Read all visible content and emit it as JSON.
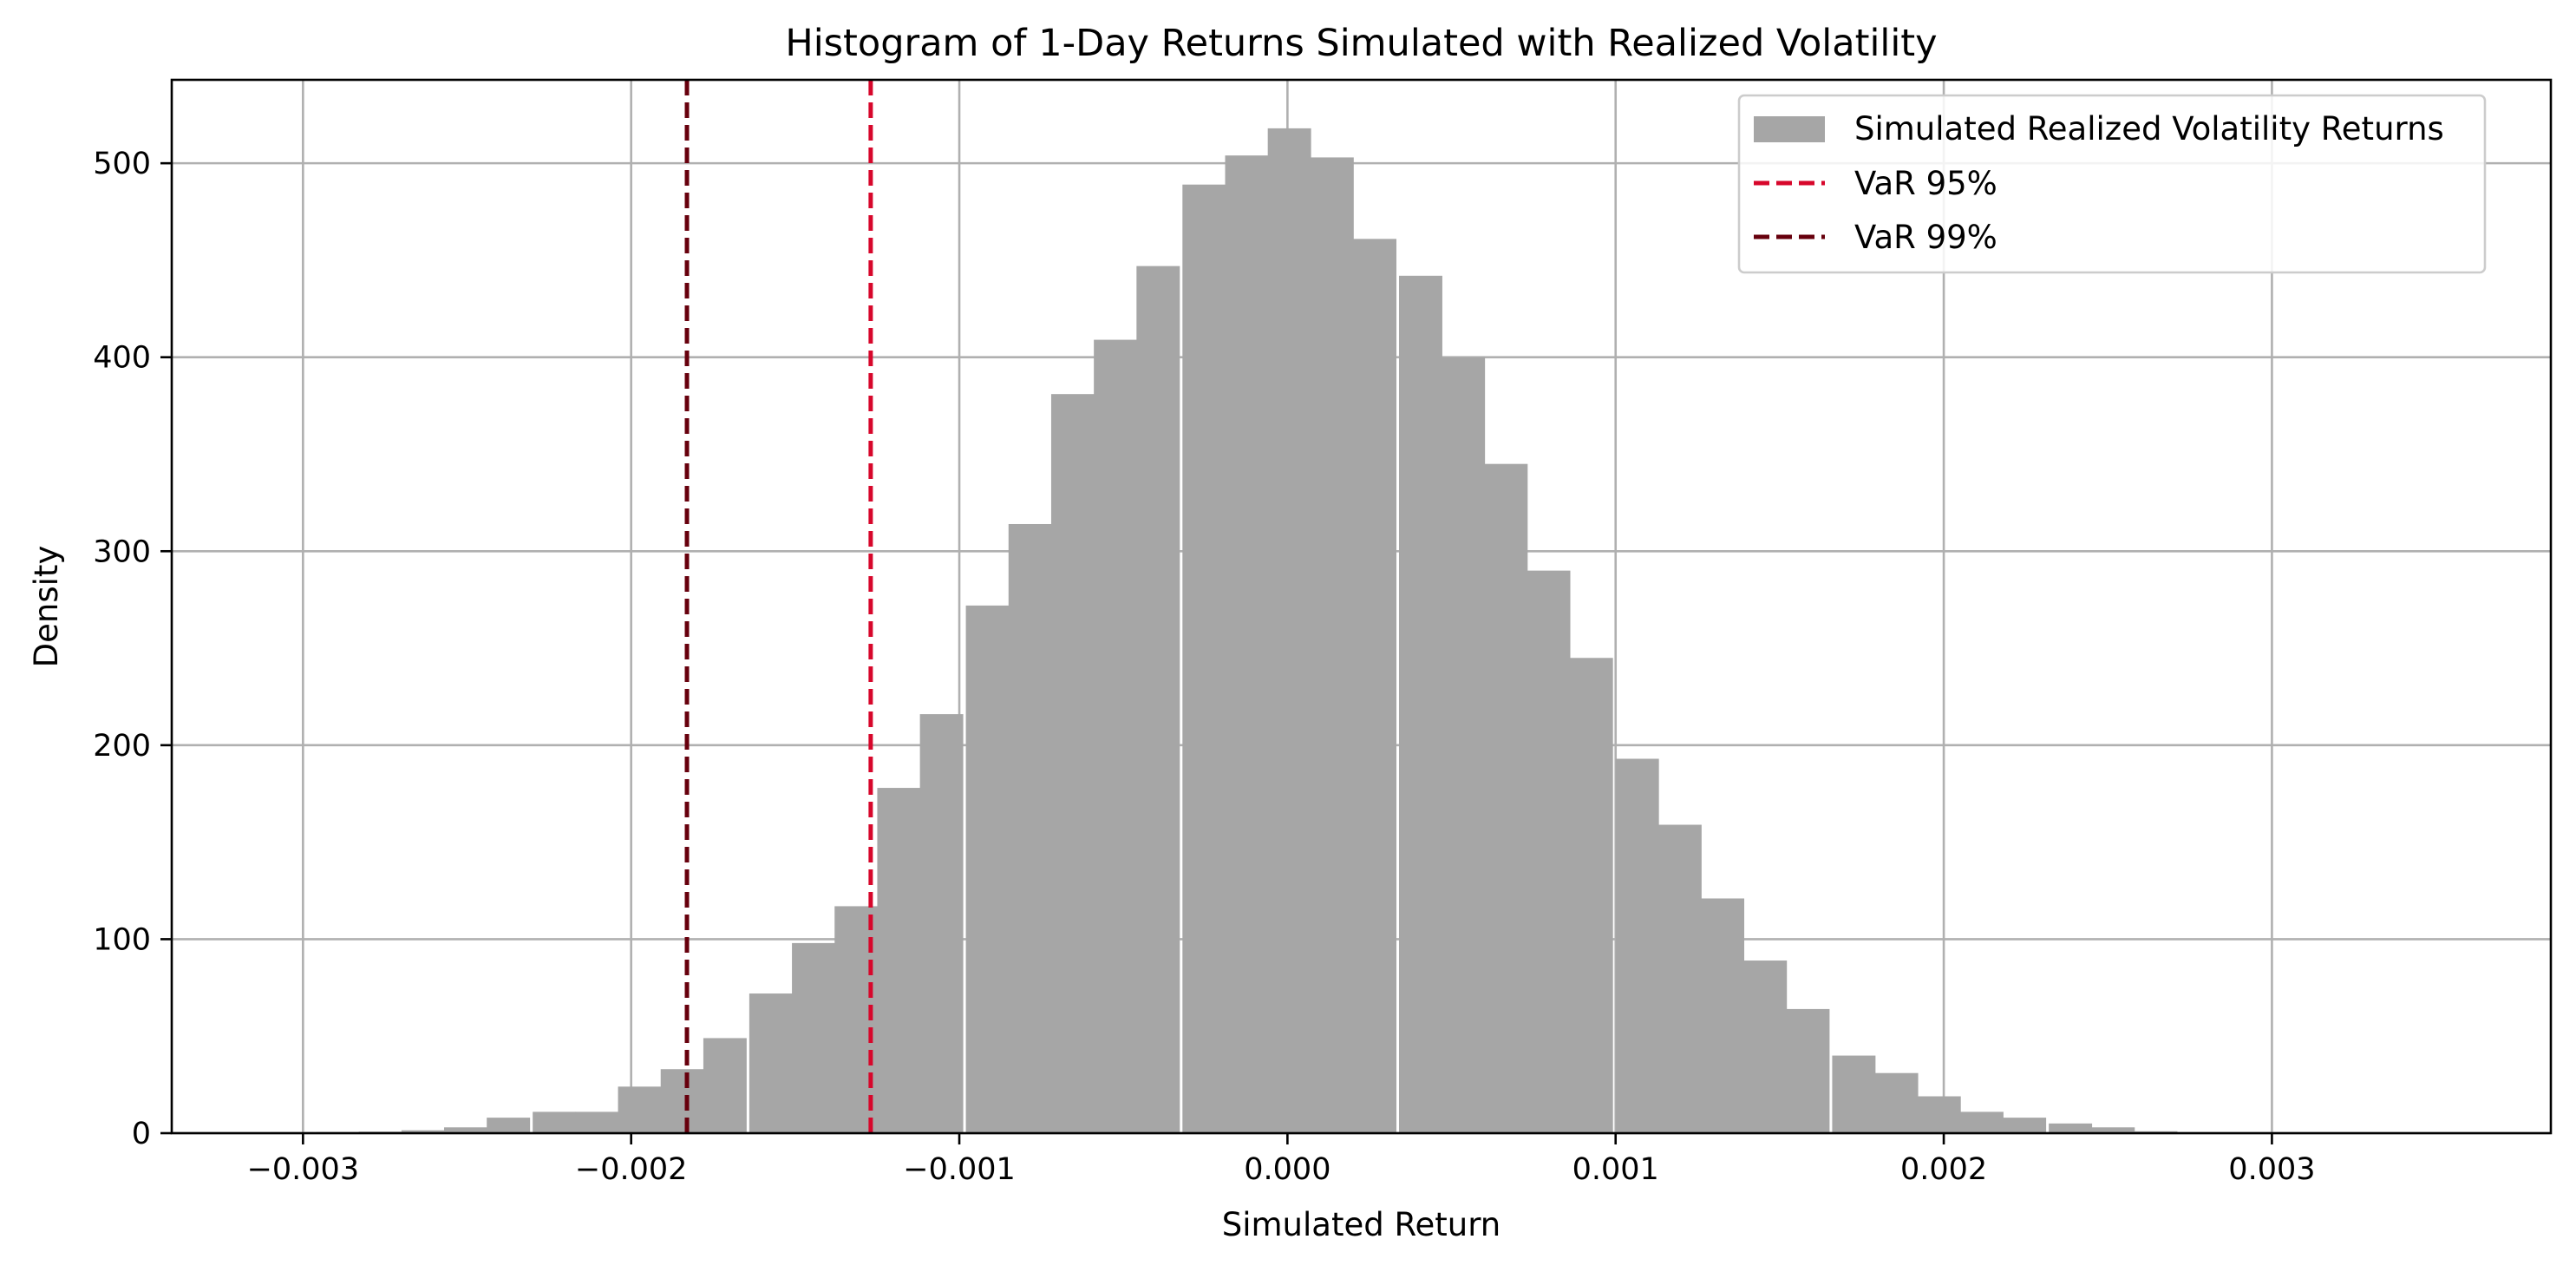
{
  "chart_data": {
    "type": "bar",
    "title": "Histogram of 1-Day Returns Simulated with Realized Volatility",
    "xlabel": "Simulated Return",
    "ylabel": "Density",
    "xlim": [
      -0.0034,
      0.00385
    ],
    "ylim": [
      0,
      543
    ],
    "xticks": [
      -0.003,
      -0.002,
      -0.001,
      0.0,
      0.001,
      0.002,
      0.003
    ],
    "xtick_labels": [
      "−0.003",
      "−0.002",
      "−0.001",
      "0.000",
      "0.001",
      "0.002",
      "0.003"
    ],
    "yticks": [
      0,
      100,
      200,
      300,
      400,
      500
    ],
    "ytick_labels": [
      "0",
      "100",
      "200",
      "300",
      "400",
      "500"
    ],
    "grid": true,
    "legend_position": "upper-right",
    "bin_width": 0.000132,
    "series": [
      {
        "name": "Simulated Realized Volatility Returns",
        "kind": "histogram",
        "color": "#a6a6a6",
        "bins": [
          {
            "x0": -0.00323,
            "value": 0.3
          },
          {
            "x0": -0.0031,
            "value": 0.5
          },
          {
            "x0": -0.00296,
            "value": 0.6
          },
          {
            "x0": -0.00283,
            "value": 0.8
          },
          {
            "x0": -0.0027,
            "value": 1.5
          },
          {
            "x0": -0.00257,
            "value": 3
          },
          {
            "x0": -0.00244,
            "value": 8
          },
          {
            "x0": -0.0023,
            "value": 11
          },
          {
            "x0": -0.00217,
            "value": 11
          },
          {
            "x0": -0.00204,
            "value": 24
          },
          {
            "x0": -0.00191,
            "value": 33
          },
          {
            "x0": -0.00178,
            "value": 49
          },
          {
            "x0": -0.00164,
            "value": 72
          },
          {
            "x0": -0.00151,
            "value": 98
          },
          {
            "x0": -0.00138,
            "value": 117
          },
          {
            "x0": -0.00125,
            "value": 178
          },
          {
            "x0": -0.00112,
            "value": 216
          },
          {
            "x0": -0.00098,
            "value": 272
          },
          {
            "x0": -0.00085,
            "value": 314
          },
          {
            "x0": -0.00072,
            "value": 381
          },
          {
            "x0": -0.00059,
            "value": 409
          },
          {
            "x0": -0.00046,
            "value": 447
          },
          {
            "x0": -0.00032,
            "value": 489
          },
          {
            "x0": -0.00019,
            "value": 504
          },
          {
            "x0": -6e-05,
            "value": 518
          },
          {
            "x0": 7e-05,
            "value": 503
          },
          {
            "x0": 0.0002,
            "value": 461
          },
          {
            "x0": 0.00034,
            "value": 442
          },
          {
            "x0": 0.00047,
            "value": 400
          },
          {
            "x0": 0.0006,
            "value": 345
          },
          {
            "x0": 0.00073,
            "value": 290
          },
          {
            "x0": 0.00086,
            "value": 245
          },
          {
            "x0": 0.001,
            "value": 193
          },
          {
            "x0": 0.00113,
            "value": 159
          },
          {
            "x0": 0.00126,
            "value": 121
          },
          {
            "x0": 0.00139,
            "value": 89
          },
          {
            "x0": 0.00152,
            "value": 64
          },
          {
            "x0": 0.00166,
            "value": 40
          },
          {
            "x0": 0.00179,
            "value": 31
          },
          {
            "x0": 0.00192,
            "value": 19
          },
          {
            "x0": 0.00205,
            "value": 11
          },
          {
            "x0": 0.00218,
            "value": 8
          },
          {
            "x0": 0.00232,
            "value": 5
          },
          {
            "x0": 0.00245,
            "value": 3
          },
          {
            "x0": 0.00258,
            "value": 1
          },
          {
            "x0": 0.00271,
            "value": 0.5
          },
          {
            "x0": 0.00284,
            "value": 0.3
          },
          {
            "x0": 0.00298,
            "value": 0.3
          },
          {
            "x0": 0.00311,
            "value": 0.3
          }
        ]
      },
      {
        "name": "VaR 95%",
        "kind": "vline",
        "x": -0.00127,
        "color": "#d7072b",
        "style": "dashed"
      },
      {
        "name": "VaR 99%",
        "kind": "vline",
        "x": -0.00183,
        "color": "#67000d",
        "style": "dashed"
      }
    ]
  }
}
